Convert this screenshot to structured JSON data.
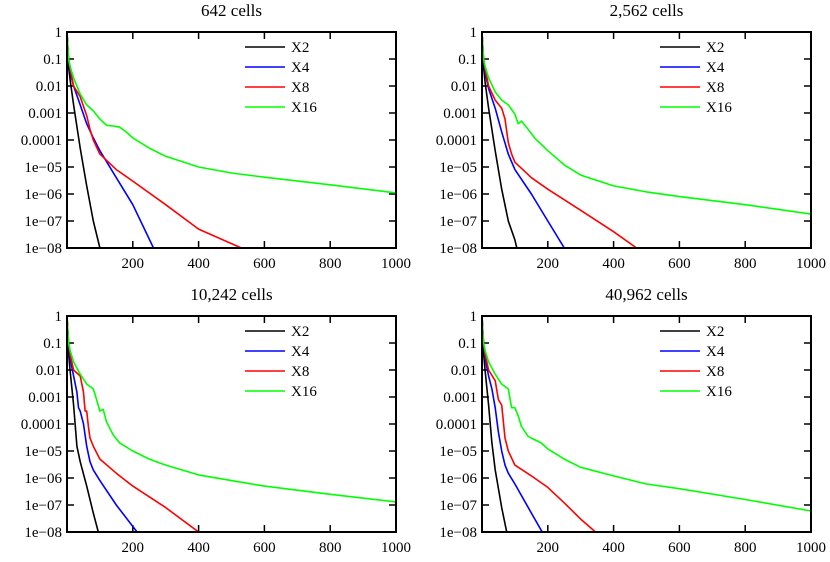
{
  "chart_data": [
    {
      "type": "line",
      "title": "642 cells",
      "xlim": [
        0,
        1000
      ],
      "ylim": [
        1e-08,
        1
      ],
      "yscale": "log",
      "x_ticks": [
        200,
        400,
        600,
        800,
        1000
      ],
      "y_ticks": [
        1,
        0.1,
        0.01,
        0.001,
        0.0001,
        1e-05,
        1e-06,
        1e-07,
        1e-08
      ],
      "y_tick_labels": [
        "1",
        "0.1",
        "0.01",
        "0.001",
        "0.0001",
        "1e−05",
        "1e−06",
        "1e−07",
        "1e−08"
      ],
      "legend_position": "top-right",
      "series": [
        {
          "name": "X2",
          "color": "#000000",
          "x": [
            0,
            5,
            10,
            20,
            40,
            60,
            80,
            100,
            112
          ],
          "y": [
            1,
            0.05,
            0.015,
            0.002,
            5e-05,
            2e-06,
            1e-07,
            1e-08,
            3e-09
          ]
        },
        {
          "name": "X4",
          "color": "#0000ff",
          "x": [
            0,
            5,
            10,
            20,
            40,
            60,
            80,
            100,
            150,
            200,
            263
          ],
          "y": [
            1,
            0.08,
            0.03,
            0.01,
            0.002,
            0.0004,
            0.00012,
            4e-05,
            4e-06,
            4e-07,
            1e-08
          ]
        },
        {
          "name": "X8",
          "color": "#ff0000",
          "x": [
            0,
            5,
            10,
            20,
            40,
            60,
            70,
            80,
            100,
            150,
            200,
            300,
            400,
            530
          ],
          "y": [
            1,
            0.1,
            0.04,
            0.01,
            0.004,
            0.0008,
            0.00025,
            0.0001,
            3e-05,
            8e-06,
            3e-06,
            4e-07,
            5e-08,
            1e-08
          ]
        },
        {
          "name": "X16",
          "color": "#00ff00",
          "x": [
            0,
            5,
            10,
            20,
            40,
            60,
            80,
            100,
            120,
            140,
            160,
            180,
            200,
            250,
            300,
            400,
            500,
            600,
            800,
            1000
          ],
          "y": [
            1,
            0.1,
            0.05,
            0.02,
            0.005,
            0.002,
            0.0012,
            0.0006,
            0.00035,
            0.00033,
            0.0003,
            0.0002,
            0.00012,
            5e-05,
            2.5e-05,
            1e-05,
            6e-06,
            4.2e-06,
            2.2e-06,
            1.1e-06
          ]
        }
      ]
    },
    {
      "type": "line",
      "title": "2,562 cells",
      "xlim": [
        0,
        1000
      ],
      "ylim": [
        1e-08,
        1
      ],
      "yscale": "log",
      "x_ticks": [
        200,
        400,
        600,
        800,
        1000
      ],
      "y_ticks": [
        1,
        0.1,
        0.01,
        0.001,
        0.0001,
        1e-05,
        1e-06,
        1e-07,
        1e-08
      ],
      "y_tick_labels": [
        "1",
        "0.1",
        "0.01",
        "0.001",
        "0.0001",
        "1e−05",
        "1e−06",
        "1e−07",
        "1e−08"
      ],
      "legend_position": "top-right",
      "series": [
        {
          "name": "X2",
          "color": "#000000",
          "x": [
            0,
            5,
            10,
            20,
            40,
            60,
            80,
            100,
            110
          ],
          "y": [
            1,
            0.05,
            0.012,
            0.0015,
            4e-05,
            1.5e-06,
            1e-07,
            2e-08,
            6e-09
          ]
        },
        {
          "name": "X4",
          "color": "#0000ff",
          "x": [
            0,
            5,
            10,
            20,
            40,
            60,
            80,
            100,
            150,
            200,
            250
          ],
          "y": [
            1,
            0.08,
            0.03,
            0.008,
            0.0015,
            0.0002,
            3e-05,
            8e-06,
            1e-06,
            1e-07,
            1e-08
          ]
        },
        {
          "name": "X8",
          "color": "#ff0000",
          "x": [
            0,
            5,
            10,
            20,
            40,
            60,
            70,
            80,
            90,
            100,
            150,
            200,
            300,
            400,
            470
          ],
          "y": [
            1,
            0.1,
            0.04,
            0.01,
            0.003,
            0.0015,
            0.0006,
            8e-05,
            3e-05,
            1.5e-05,
            4e-06,
            1.5e-06,
            2.5e-07,
            4e-08,
            1e-08
          ]
        },
        {
          "name": "X16",
          "color": "#00ff00",
          "x": [
            0,
            5,
            10,
            20,
            40,
            60,
            80,
            100,
            110,
            120,
            140,
            160,
            200,
            250,
            300,
            400,
            500,
            600,
            800,
            1000
          ],
          "y": [
            1,
            0.1,
            0.05,
            0.02,
            0.006,
            0.003,
            0.002,
            0.0009,
            0.0004,
            0.0005,
            0.00025,
            0.00012,
            4e-05,
            1.2e-05,
            5e-06,
            2e-06,
            1.2e-06,
            8e-07,
            4e-07,
            1.8e-07
          ]
        }
      ]
    },
    {
      "type": "line",
      "title": "10,242 cells",
      "xlim": [
        0,
        1000
      ],
      "ylim": [
        1e-08,
        1
      ],
      "yscale": "log",
      "x_ticks": [
        200,
        400,
        600,
        800,
        1000
      ],
      "y_ticks": [
        1,
        0.1,
        0.01,
        0.001,
        0.0001,
        1e-05,
        1e-06,
        1e-07,
        1e-08
      ],
      "y_tick_labels": [
        "1",
        "0.1",
        "0.01",
        "0.001",
        "0.0001",
        "1e−05",
        "1e−06",
        "1e−07",
        "1e−08"
      ],
      "legend_position": "top-right",
      "series": [
        {
          "name": "X2",
          "color": "#000000",
          "x": [
            0,
            5,
            10,
            20,
            30,
            40,
            60,
            80,
            95
          ],
          "y": [
            1,
            0.04,
            0.008,
            0.0005,
            1.5e-05,
            4e-06,
            5e-07,
            5e-08,
            1e-08
          ]
        },
        {
          "name": "X4",
          "color": "#0000ff",
          "x": [
            0,
            5,
            10,
            20,
            30,
            35,
            40,
            50,
            60,
            70,
            80,
            100,
            150,
            213
          ],
          "y": [
            1,
            0.08,
            0.025,
            0.006,
            0.0015,
            0.0004,
            0.0003,
            0.0001,
            1.5e-05,
            4e-06,
            2e-06,
            8e-07,
            1e-07,
            1e-08
          ]
        },
        {
          "name": "X8",
          "color": "#ff0000",
          "x": [
            0,
            5,
            10,
            20,
            40,
            50,
            55,
            60,
            65,
            70,
            80,
            100,
            150,
            200,
            300,
            400
          ],
          "y": [
            1,
            0.1,
            0.035,
            0.01,
            0.006,
            0.0015,
            0.0003,
            0.0003,
            8e-05,
            3e-05,
            1.5e-05,
            5e-06,
            1.5e-06,
            5e-07,
            8e-08,
            1e-08
          ]
        },
        {
          "name": "X16",
          "color": "#00ff00",
          "x": [
            0,
            5,
            10,
            20,
            40,
            60,
            80,
            90,
            100,
            110,
            120,
            140,
            160,
            200,
            250,
            300,
            400,
            500,
            600,
            800,
            1000
          ],
          "y": [
            1,
            0.1,
            0.05,
            0.02,
            0.007,
            0.003,
            0.002,
            0.0008,
            0.0003,
            0.00035,
            0.00012,
            4e-05,
            2e-05,
            1e-05,
            5e-06,
            3e-06,
            1.3e-06,
            8e-07,
            5e-07,
            2.5e-07,
            1.3e-07
          ]
        }
      ]
    },
    {
      "type": "line",
      "title": "40,962 cells",
      "xlim": [
        0,
        1000
      ],
      "ylim": [
        1e-08,
        1
      ],
      "yscale": "log",
      "x_ticks": [
        200,
        400,
        600,
        800,
        1000
      ],
      "y_ticks": [
        1,
        0.1,
        0.01,
        0.001,
        0.0001,
        1e-05,
        1e-06,
        1e-07,
        1e-08
      ],
      "y_tick_labels": [
        "1",
        "0.1",
        "0.01",
        "0.001",
        "0.0001",
        "1e−05",
        "1e−06",
        "1e−07",
        "1e−08"
      ],
      "legend_position": "top-right",
      "series": [
        {
          "name": "X2",
          "color": "#000000",
          "x": [
            0,
            5,
            10,
            20,
            30,
            40,
            60,
            75
          ],
          "y": [
            1,
            0.04,
            0.008,
            0.0005,
            2e-05,
            2e-06,
            8e-08,
            1e-08
          ]
        },
        {
          "name": "X4",
          "color": "#0000ff",
          "x": [
            0,
            5,
            10,
            20,
            30,
            40,
            50,
            60,
            70,
            80,
            100,
            150,
            183
          ],
          "y": [
            1,
            0.08,
            0.025,
            0.006,
            0.002,
            0.0004,
            5e-05,
            1e-05,
            3e-06,
            1.5e-06,
            6e-07,
            5e-08,
            1e-08
          ]
        },
        {
          "name": "X8",
          "color": "#ff0000",
          "x": [
            0,
            5,
            10,
            20,
            40,
            50,
            60,
            70,
            80,
            100,
            150,
            200,
            250,
            300,
            345
          ],
          "y": [
            1,
            0.1,
            0.035,
            0.01,
            0.004,
            0.0008,
            0.0005,
            3e-05,
            1e-05,
            3e-06,
            1.2e-06,
            4.5e-07,
            1.2e-07,
            3e-08,
            1e-08
          ]
        },
        {
          "name": "X16",
          "color": "#00ff00",
          "x": [
            0,
            5,
            10,
            20,
            40,
            60,
            80,
            90,
            100,
            110,
            120,
            140,
            150,
            180,
            200,
            250,
            300,
            400,
            500,
            600,
            800,
            1000
          ],
          "y": [
            1,
            0.1,
            0.05,
            0.02,
            0.007,
            0.003,
            0.002,
            0.0004,
            0.0004,
            0.0002,
            8e-05,
            3.5e-05,
            3e-05,
            2e-05,
            1.2e-05,
            5e-06,
            2.5e-06,
            1.2e-06,
            6e-07,
            4e-07,
            1.6e-07,
            6e-08
          ]
        }
      ]
    }
  ]
}
